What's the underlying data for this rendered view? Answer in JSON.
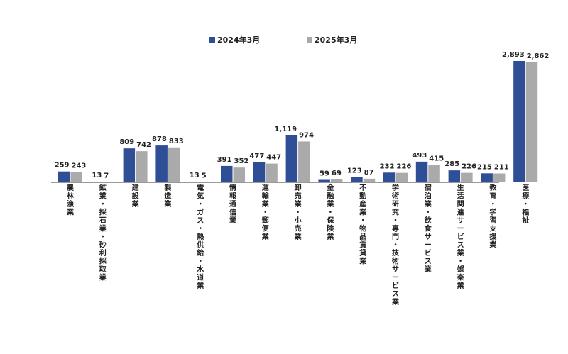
{
  "chart_data": {
    "type": "bar",
    "title": "",
    "xlabel": "",
    "ylabel": "",
    "ylim": [
      0,
      2893
    ],
    "grid": false,
    "legend_position": "top-center",
    "colors": [
      "#2E4E96",
      "#AAAAAA"
    ],
    "categories": [
      "農林漁業",
      "鉱業・採石業・砂利採取業",
      "建設業",
      "製造業",
      "電気・ガス・熱供給・水道業",
      "情報通信業",
      "運輸業・郵便業",
      "卸売業・小売業",
      "金融業・保険業",
      "不動産業・物品賃貸業",
      "学術研究・専門・技術サービス業",
      "宿泊業・飲食サービス業",
      "生活関連サービス業・娯楽業",
      "教育・学習支援業",
      "医療・福祉"
    ],
    "series": [
      {
        "name": "2024年3月",
        "values": [
          259,
          13,
          809,
          878,
          13,
          391,
          477,
          1119,
          59,
          123,
          232,
          493,
          285,
          215,
          2893
        ]
      },
      {
        "name": "2025年3月",
        "values": [
          243,
          7,
          742,
          833,
          5,
          352,
          447,
          974,
          69,
          87,
          226,
          415,
          226,
          211,
          2862
        ]
      }
    ],
    "value_labels": [
      [
        "259",
        "13",
        "809",
        "878",
        "13",
        "391",
        "477",
        "1,119",
        "59",
        "123",
        "232",
        "493",
        "285",
        "215",
        "2,893"
      ],
      [
        "243",
        "7",
        "742",
        "833",
        "5",
        "352",
        "447",
        "974",
        "69",
        "87",
        "226",
        "415",
        "226",
        "211",
        "2,862"
      ]
    ]
  }
}
